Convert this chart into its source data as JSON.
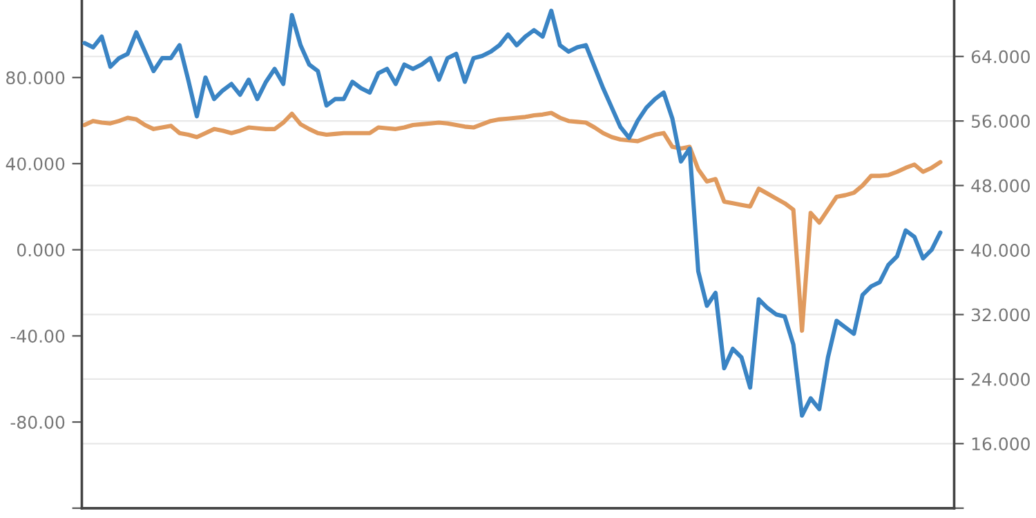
{
  "chart_data": {
    "type": "line",
    "categories": [
      null,
      null,
      null,
      null,
      null,
      null,
      null,
      null,
      null,
      null,
      null,
      null,
      null,
      null,
      null,
      null,
      null,
      null,
      null,
      null,
      null,
      null,
      null,
      null,
      null,
      null,
      null,
      null,
      null,
      null,
      null,
      null,
      null,
      null,
      null,
      null,
      null,
      null,
      null,
      null,
      null,
      null,
      null,
      null,
      null,
      null,
      null,
      null,
      null,
      null,
      null,
      null,
      null,
      null,
      null,
      null,
      null,
      null,
      null,
      null,
      null,
      null,
      null,
      null,
      null,
      null,
      null,
      null,
      null,
      null,
      null,
      null,
      null,
      null,
      null,
      null,
      null,
      null,
      null,
      null,
      null,
      null,
      null,
      null,
      null,
      null,
      null,
      null,
      null,
      null,
      null,
      null,
      null,
      null,
      null,
      null,
      null,
      null,
      null,
      null
    ],
    "ylim": [
      -120,
      116
    ],
    "yticks": [
      {
        "value": -120,
        "label": null
      },
      {
        "value": -80,
        "label": "-80.00"
      },
      {
        "value": -40,
        "label": "-40.00"
      },
      {
        "value": 0,
        "label": "0.000"
      },
      {
        "value": 40,
        "label": "40.000"
      },
      {
        "value": 80,
        "label": "80.000"
      }
    ],
    "y2lim": [
      8,
      71
    ],
    "y2ticks": [
      {
        "value": 8,
        "label": null
      },
      {
        "value": 16,
        "label": "16.000"
      },
      {
        "value": 24,
        "label": "24.000"
      },
      {
        "value": 32,
        "label": "32.000"
      },
      {
        "value": 40,
        "label": "40.000"
      },
      {
        "value": 48,
        "label": "48.000"
      },
      {
        "value": 56,
        "label": "56.000"
      },
      {
        "value": 64,
        "label": "64.000"
      }
    ],
    "grid": "y",
    "line_style": "solid",
    "series": [
      {
        "color": "#3a84c4",
        "axis": "y",
        "values": [
          96,
          94,
          99,
          85,
          89,
          91,
          101,
          92,
          83,
          89,
          89,
          95,
          79,
          62,
          80,
          70,
          74,
          77,
          72,
          79,
          70,
          78,
          84,
          77,
          109,
          95,
          86,
          83,
          67,
          70,
          70,
          78,
          75,
          73,
          82,
          84,
          77,
          86,
          84,
          86,
          89,
          79,
          89,
          91,
          78,
          89,
          90,
          92,
          95,
          100,
          95,
          99,
          102,
          99,
          111,
          95,
          92,
          94,
          95,
          85,
          75,
          66,
          57,
          52,
          60,
          66,
          70,
          73,
          61,
          41,
          47,
          -10,
          -26,
          -20,
          -55,
          -46,
          -50,
          -64,
          -23,
          -27,
          -30,
          -31,
          -44,
          -77,
          -69,
          -74,
          -50,
          -33,
          -36,
          -39,
          -21,
          -17,
          -15,
          -7,
          -3,
          9,
          6,
          -4,
          0,
          8
        ]
      },
      {
        "color": "#e09a5e",
        "axis": "y2",
        "values": [
          55.5,
          56.0,
          55.8,
          55.7,
          56.0,
          56.4,
          56.2,
          55.5,
          55.0,
          55.2,
          55.4,
          54.5,
          54.3,
          54.0,
          54.5,
          55.0,
          54.8,
          54.5,
          54.8,
          55.2,
          55.1,
          55.0,
          55.0,
          55.8,
          56.9,
          55.6,
          55.0,
          54.5,
          54.3,
          54.4,
          54.5,
          54.5,
          54.5,
          54.5,
          55.2,
          55.1,
          55.0,
          55.2,
          55.5,
          55.6,
          55.7,
          55.8,
          55.7,
          55.5,
          55.3,
          55.2,
          55.6,
          56.0,
          56.2,
          56.3,
          56.4,
          56.5,
          56.7,
          56.8,
          57.0,
          56.4,
          56.0,
          55.9,
          55.8,
          55.2,
          54.5,
          54.0,
          53.7,
          53.6,
          53.5,
          53.9,
          54.3,
          54.5,
          52.8,
          52.6,
          52.8,
          50.0,
          48.5,
          48.8,
          46.0,
          45.8,
          45.6,
          45.4,
          47.6,
          47.0,
          46.4,
          45.8,
          45.0,
          30.0,
          44.6,
          43.4,
          45.0,
          46.6,
          46.8,
          47.1,
          48.0,
          49.2,
          49.2,
          49.3,
          49.7,
          50.2,
          50.6,
          49.7,
          50.2,
          50.9
        ]
      }
    ]
  }
}
